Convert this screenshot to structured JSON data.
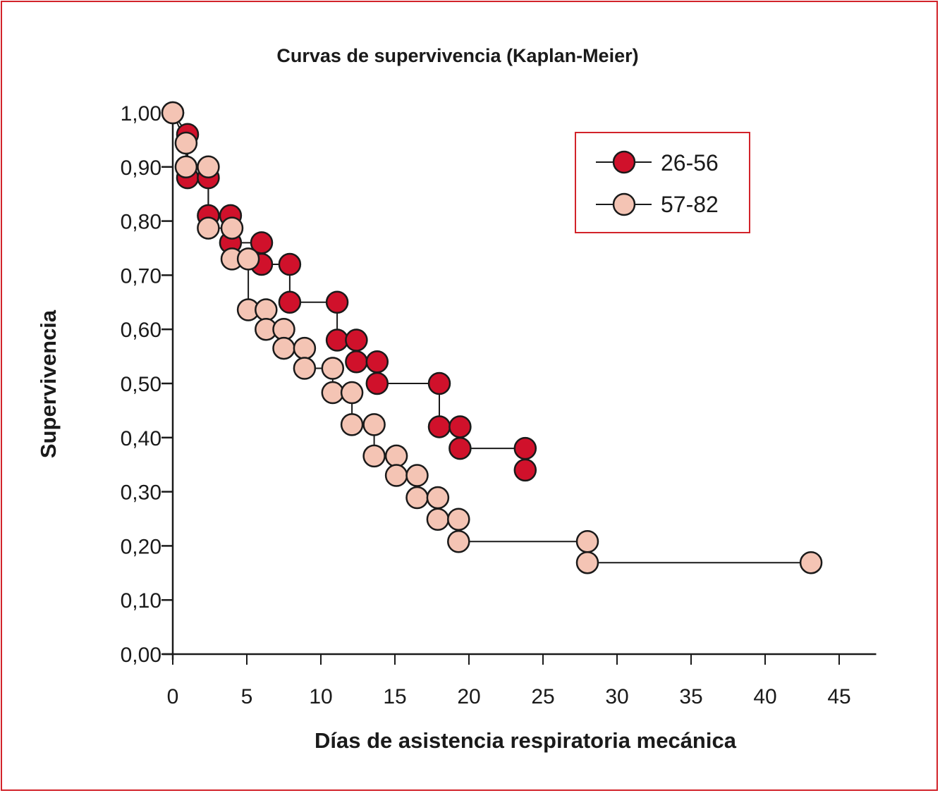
{
  "chart_data": {
    "type": "line",
    "subtype": "kaplan-meier step curves with markers",
    "title": "Curvas de supervivencia (Kaplan-Meier)",
    "xlabel": "Días de asistencia respiratoria mecánica",
    "ylabel": "Supervivencia",
    "xlim": [
      0,
      47.5
    ],
    "ylim": [
      0,
      1.0
    ],
    "xticks": [
      0,
      5,
      10,
      15,
      20,
      25,
      30,
      35,
      40,
      45
    ],
    "xtick_labels": [
      "0",
      "5",
      "10",
      "15",
      "20",
      "25",
      "30",
      "35",
      "40",
      "45"
    ],
    "yticks": [
      0,
      0.1,
      0.2,
      0.3,
      0.4,
      0.5,
      0.6,
      0.7,
      0.8,
      0.9,
      1.0
    ],
    "ytick_labels": [
      "0,00",
      "0,10",
      "0,20",
      "0,30",
      "0,40",
      "0,50",
      "0,60",
      "0,70",
      "0,80",
      "0,90",
      "1,00"
    ],
    "grid": false,
    "legend": {
      "position": "top-right",
      "bordered": true
    },
    "series": [
      {
        "name": "26-56",
        "color": "#d0112b",
        "points": [
          [
            0,
            1.0
          ],
          [
            1.0,
            0.96
          ],
          [
            1.0,
            0.88
          ],
          [
            2.4,
            0.88
          ],
          [
            2.4,
            0.81
          ],
          [
            3.9,
            0.81
          ],
          [
            3.9,
            0.76
          ],
          [
            6.0,
            0.76
          ],
          [
            6.0,
            0.72
          ],
          [
            7.9,
            0.72
          ],
          [
            7.9,
            0.65
          ],
          [
            11.1,
            0.65
          ],
          [
            11.1,
            0.58
          ],
          [
            12.4,
            0.58
          ],
          [
            12.4,
            0.54
          ],
          [
            13.8,
            0.54
          ],
          [
            13.8,
            0.5
          ],
          [
            18.0,
            0.5
          ],
          [
            18.0,
            0.42
          ],
          [
            19.4,
            0.42
          ],
          [
            19.4,
            0.38
          ],
          [
            23.8,
            0.38
          ],
          [
            23.8,
            0.34
          ]
        ]
      },
      {
        "name": "57-82",
        "color": "#f4c4b4",
        "points": [
          [
            0,
            1.0
          ],
          [
            0.9,
            0.944
          ],
          [
            0.9,
            0.9
          ],
          [
            2.4,
            0.9
          ],
          [
            2.4,
            0.787
          ],
          [
            4.0,
            0.787
          ],
          [
            4.0,
            0.73
          ],
          [
            5.1,
            0.73
          ],
          [
            5.1,
            0.636
          ],
          [
            6.3,
            0.636
          ],
          [
            6.3,
            0.6
          ],
          [
            7.5,
            0.6
          ],
          [
            7.5,
            0.565
          ],
          [
            8.9,
            0.565
          ],
          [
            8.9,
            0.528
          ],
          [
            10.8,
            0.528
          ],
          [
            10.8,
            0.483
          ],
          [
            12.1,
            0.483
          ],
          [
            12.1,
            0.424
          ],
          [
            13.6,
            0.424
          ],
          [
            13.6,
            0.366
          ],
          [
            15.1,
            0.366
          ],
          [
            15.1,
            0.33
          ],
          [
            16.5,
            0.33
          ],
          [
            16.5,
            0.289
          ],
          [
            17.9,
            0.289
          ],
          [
            17.9,
            0.249
          ],
          [
            19.3,
            0.249
          ],
          [
            19.3,
            0.208
          ],
          [
            28.0,
            0.208
          ],
          [
            28.0,
            0.169
          ],
          [
            43.1,
            0.169
          ]
        ]
      }
    ]
  },
  "colors": {
    "frame": "#d2232a",
    "axis": "#1a1a1a",
    "marker_stroke": "#1a1a1a"
  }
}
